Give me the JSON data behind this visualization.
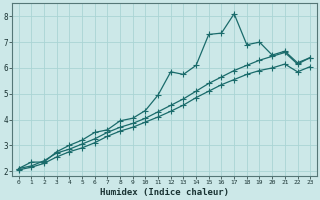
{
  "title": "",
  "xlabel": "Humidex (Indice chaleur)",
  "ylabel": "",
  "bg_color": "#cce8e8",
  "grid_color": "#aad4d4",
  "line_color": "#1a6b6b",
  "xlim": [
    -0.5,
    23.5
  ],
  "ylim": [
    1.8,
    8.5
  ],
  "xticks": [
    0,
    1,
    2,
    3,
    4,
    5,
    6,
    7,
    8,
    9,
    10,
    11,
    12,
    13,
    14,
    15,
    16,
    17,
    18,
    19,
    20,
    21,
    22,
    23
  ],
  "yticks": [
    2,
    3,
    4,
    5,
    6,
    7,
    8
  ],
  "line1_x": [
    0,
    1,
    2,
    3,
    4,
    5,
    6,
    7,
    8,
    9,
    10,
    11,
    12,
    13,
    14,
    15,
    16,
    17,
    18,
    19,
    20,
    21,
    22,
    23
  ],
  "line1_y": [
    2.1,
    2.35,
    2.35,
    2.75,
    3.0,
    3.2,
    3.5,
    3.6,
    3.95,
    4.05,
    4.35,
    4.95,
    5.85,
    5.75,
    6.1,
    7.3,
    7.35,
    8.1,
    6.9,
    7.0,
    6.5,
    6.65,
    6.2,
    6.4
  ],
  "line2_x": [
    0,
    1,
    2,
    3,
    4,
    5,
    6,
    7,
    8,
    9,
    10,
    11,
    12,
    13,
    14,
    15,
    16,
    17,
    18,
    19,
    20,
    21,
    22,
    23
  ],
  "line2_y": [
    2.1,
    2.2,
    2.4,
    2.7,
    2.85,
    3.05,
    3.25,
    3.5,
    3.7,
    3.85,
    4.05,
    4.3,
    4.55,
    4.8,
    5.1,
    5.4,
    5.65,
    5.9,
    6.1,
    6.3,
    6.45,
    6.6,
    6.15,
    6.4
  ],
  "line3_x": [
    0,
    1,
    2,
    3,
    4,
    5,
    6,
    7,
    8,
    9,
    10,
    11,
    12,
    13,
    14,
    15,
    16,
    17,
    18,
    19,
    20,
    21,
    22,
    23
  ],
  "line3_y": [
    2.05,
    2.15,
    2.3,
    2.55,
    2.75,
    2.9,
    3.1,
    3.35,
    3.55,
    3.7,
    3.9,
    4.1,
    4.32,
    4.56,
    4.85,
    5.1,
    5.35,
    5.55,
    5.75,
    5.9,
    6.0,
    6.15,
    5.85,
    6.05
  ]
}
